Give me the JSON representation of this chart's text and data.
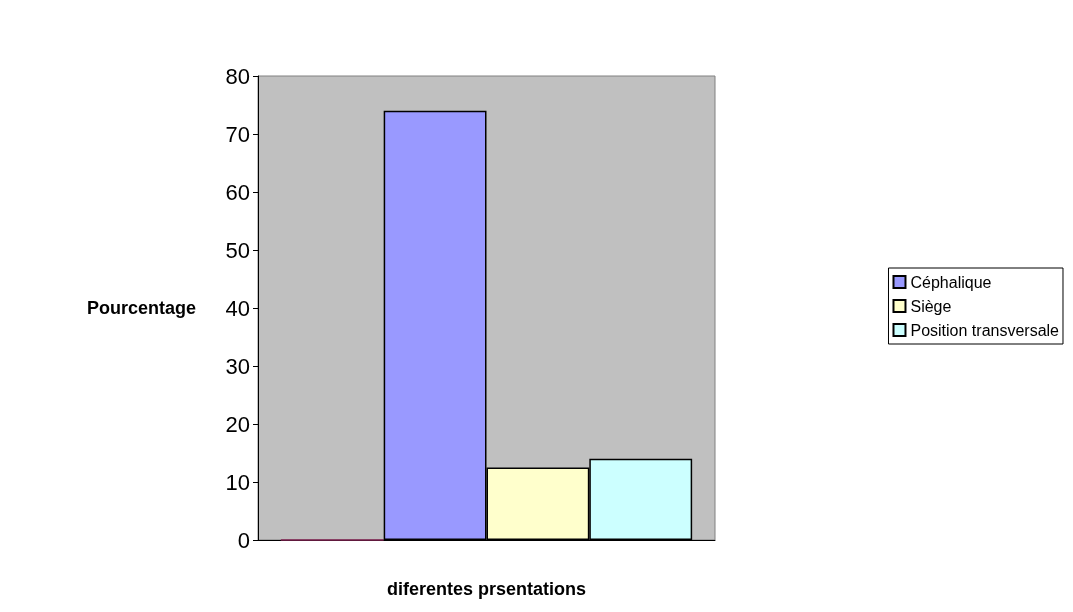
{
  "chart_data": {
    "type": "bar",
    "xlabel": "diferentes prsentations",
    "ylabel": "Pourcentage",
    "categories": [
      null
    ],
    "series": [
      {
        "color": "#802050",
        "values": [
          0
        ]
      },
      {
        "name": "Céphalique",
        "color": "#9999ff",
        "values": [
          74
        ]
      },
      {
        "name": "Siège",
        "color": "#ffffcc",
        "values": [
          12.5
        ]
      },
      {
        "name": "Position transversale",
        "color": "#ccffff",
        "values": [
          14
        ]
      }
    ],
    "ylim": [
      0,
      80
    ],
    "yticks": [
      0,
      10,
      20,
      30,
      40,
      50,
      60,
      70,
      80
    ],
    "grid": false,
    "legend": "right"
  }
}
